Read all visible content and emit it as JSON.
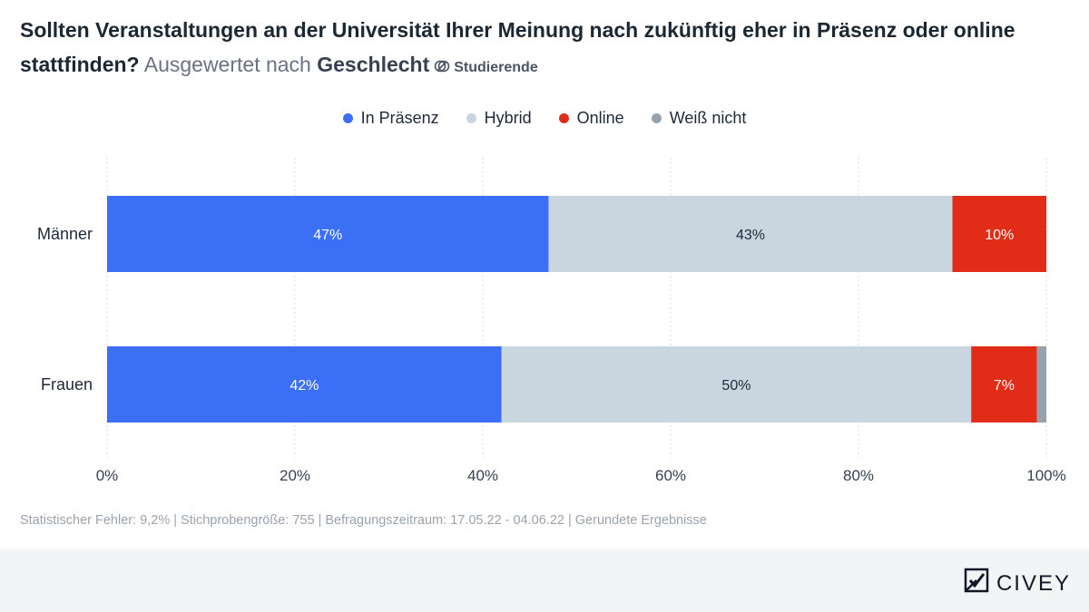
{
  "header": {
    "title_main": "Sollten Veranstaltungen an der Universität Ihrer Meinung nach zukünftig eher in Präsenz oder online stattfinden?",
    "title_sub": "Ausgewertet nach",
    "title_group": "Geschlecht",
    "filter_label": "Studierende",
    "filter_icon": "filter-overlap-icon"
  },
  "colors": {
    "in_praesenz": "#3a6ff6",
    "hybrid": "#c9d5df",
    "online": "#e12d17",
    "weiss_nicht": "#96a3ae",
    "grid": "#e5e7eb"
  },
  "chart_data": {
    "type": "bar",
    "orientation": "horizontal",
    "stacked": true,
    "categories": [
      "Männer",
      "Frauen"
    ],
    "series": [
      {
        "name": "In Präsenz",
        "values": [
          47,
          42
        ],
        "labels": [
          "47%",
          "42%"
        ]
      },
      {
        "name": "Hybrid",
        "values": [
          43,
          50
        ],
        "labels": [
          "43%",
          "50%"
        ]
      },
      {
        "name": "Online",
        "values": [
          10,
          7
        ],
        "labels": [
          "10%",
          "7%"
        ]
      },
      {
        "name": "Weiß nicht",
        "values": [
          0,
          1
        ],
        "labels": [
          "",
          ""
        ]
      }
    ],
    "xlim": [
      0,
      100
    ],
    "xticks": [
      "0%",
      "20%",
      "40%",
      "60%",
      "80%",
      "100%"
    ],
    "grid": true,
    "legend": "top-center"
  },
  "footer": {
    "note": "Statistischer Fehler: 9,2% | Stichprobengröße: 755 | Befragungszeitraum: 17.05.22 - 04.06.22 | Gerundete Ergebnisse",
    "brand": "CIVEY",
    "brand_icon": "civey-logo-icon"
  }
}
